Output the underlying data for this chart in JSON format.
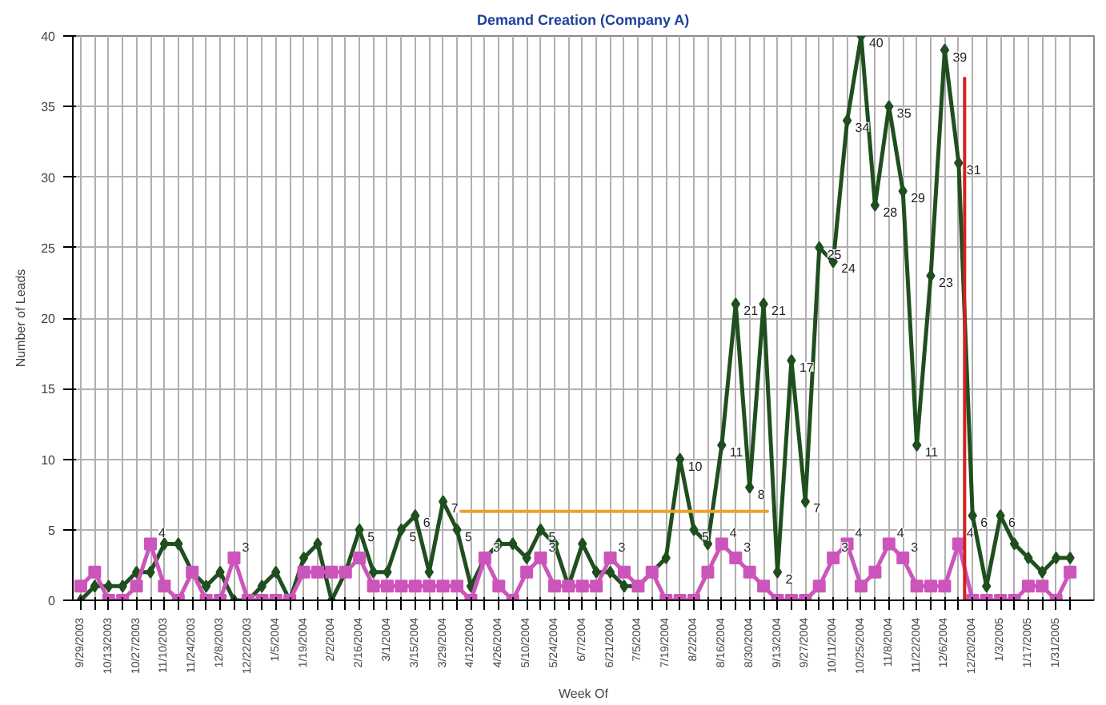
{
  "chart_data": {
    "type": "line",
    "title": "Demand Creation (Company A)",
    "xlabel": "Week Of",
    "ylabel": "Number of Leads",
    "x": [
      "2003-09-29",
      "2003-10-06",
      "2003-10-13",
      "2003-10-20",
      "2003-10-27",
      "2003-11-03",
      "2003-11-10",
      "2003-11-17",
      "2003-11-24",
      "2003-12-01",
      "2003-12-08",
      "2003-12-15",
      "2003-12-22",
      "2003-12-29",
      "2004-01-05",
      "2004-01-12",
      "2004-01-19",
      "2004-01-26",
      "2004-02-02",
      "2004-02-09",
      "2004-02-16",
      "2004-02-23",
      "2004-03-01",
      "2004-03-08",
      "2004-03-15",
      "2004-03-22",
      "2004-03-29",
      "2004-04-05",
      "2004-04-12",
      "2004-04-19",
      "2004-04-26",
      "2004-05-03",
      "2004-05-10",
      "2004-05-17",
      "2004-05-24",
      "2004-05-31",
      "2004-06-07",
      "2004-06-14",
      "2004-06-21",
      "2004-06-28",
      "2004-07-05",
      "2004-07-12",
      "2004-07-19",
      "2004-07-26",
      "2004-08-02",
      "2004-08-09",
      "2004-08-16",
      "2004-08-23",
      "2004-08-30",
      "2004-09-06",
      "2004-09-13",
      "2004-09-20",
      "2004-09-27",
      "2004-10-04",
      "2004-10-11",
      "2004-10-18",
      "2004-10-25",
      "2004-11-01",
      "2004-11-08",
      "2004-11-15",
      "2004-11-22",
      "2004-11-29",
      "2004-12-06",
      "2004-12-13",
      "2004-12-20",
      "2004-12-27",
      "2005-01-03",
      "2005-01-10",
      "2005-01-17",
      "2005-01-24",
      "2005-01-31",
      "2005-02-07"
    ],
    "series": [
      {
        "color": "#1f4f1f",
        "marker": "diamond",
        "value_labels": [
          null,
          null,
          null,
          null,
          null,
          null,
          null,
          null,
          null,
          null,
          null,
          null,
          null,
          null,
          null,
          null,
          null,
          null,
          null,
          null,
          "5",
          null,
          null,
          "5",
          "6",
          null,
          "7",
          "5",
          null,
          null,
          null,
          null,
          null,
          "5",
          null,
          null,
          null,
          null,
          null,
          null,
          null,
          null,
          null,
          "10",
          "5",
          null,
          "11",
          "21",
          "8",
          "21",
          "2",
          "17",
          "7",
          "25",
          "24",
          "34",
          "40",
          "28",
          "35",
          "29",
          "11",
          "23",
          "39",
          "31",
          "6",
          null,
          "6",
          null,
          null,
          null,
          null,
          null
        ],
        "values": [
          0,
          1,
          1,
          1,
          2,
          2,
          4,
          4,
          2,
          1,
          2,
          0,
          0,
          1,
          2,
          0,
          3,
          4,
          0,
          2,
          5,
          2,
          2,
          5,
          6,
          2,
          7,
          5,
          1,
          3,
          4,
          4,
          3,
          5,
          4,
          1,
          4,
          2,
          2,
          1,
          1,
          2,
          3,
          10,
          5,
          4,
          11,
          21,
          8,
          21,
          2,
          17,
          7,
          25,
          24,
          34,
          40,
          28,
          35,
          29,
          11,
          23,
          39,
          31,
          6,
          1,
          6,
          4,
          3,
          2,
          3,
          3
        ]
      },
      {
        "color": "#cc55bb",
        "marker": "square",
        "value_labels": [
          null,
          null,
          null,
          null,
          null,
          "4",
          null,
          null,
          null,
          null,
          null,
          "3",
          null,
          null,
          null,
          null,
          null,
          null,
          null,
          null,
          null,
          null,
          null,
          null,
          null,
          null,
          null,
          null,
          null,
          "3",
          null,
          null,
          null,
          "3",
          null,
          null,
          null,
          null,
          "3",
          null,
          null,
          null,
          null,
          null,
          null,
          null,
          "4",
          "3",
          null,
          null,
          null,
          null,
          null,
          null,
          "3",
          "4",
          null,
          null,
          "4",
          "3",
          null,
          null,
          null,
          "4",
          null,
          null,
          null,
          null,
          null,
          null,
          null,
          null
        ],
        "values": [
          1,
          2,
          0,
          0,
          1,
          4,
          1,
          0,
          2,
          0,
          0,
          3,
          0,
          0,
          0,
          0,
          2,
          2,
          2,
          2,
          3,
          1,
          1,
          1,
          1,
          1,
          1,
          1,
          0,
          3,
          1,
          0,
          2,
          3,
          1,
          1,
          1,
          1,
          3,
          2,
          1,
          2,
          0,
          0,
          0,
          2,
          4,
          3,
          2,
          1,
          0,
          0,
          0,
          1,
          3,
          4,
          1,
          2,
          4,
          3,
          1,
          1,
          1,
          4,
          0,
          0,
          0,
          0,
          1,
          1,
          0,
          2
        ]
      },
      {
        "color": "#f0a030",
        "marker": "none",
        "x": [
          "2004-04-07",
          "2004-09-08"
        ],
        "values": [
          6.3,
          6.3
        ]
      },
      {
        "color": "#d42020",
        "marker": "none",
        "x": [
          "2004-12-16",
          "2004-12-16"
        ],
        "values": [
          0,
          37
        ]
      }
    ],
    "xlim": [
      "2003-09-25",
      "2005-02-19"
    ],
    "xticks": [
      {
        "value": "2003-09-29",
        "label": "9/29/2003"
      },
      {
        "value": "2003-10-06",
        "label": null
      },
      {
        "value": "2003-10-13",
        "label": "10/13/2003"
      },
      {
        "value": "2003-10-20",
        "label": null
      },
      {
        "value": "2003-10-27",
        "label": "10/27/2003"
      },
      {
        "value": "2003-11-03",
        "label": null
      },
      {
        "value": "2003-11-10",
        "label": "11/10/2003"
      },
      {
        "value": "2003-11-17",
        "label": null
      },
      {
        "value": "2003-11-24",
        "label": "11/24/2003"
      },
      {
        "value": "2003-12-01",
        "label": null
      },
      {
        "value": "2003-12-08",
        "label": "12/8/2003"
      },
      {
        "value": "2003-12-15",
        "label": null
      },
      {
        "value": "2003-12-22",
        "label": "12/22/2003"
      },
      {
        "value": "2003-12-29",
        "label": null
      },
      {
        "value": "2004-01-05",
        "label": "1/5/2004"
      },
      {
        "value": "2004-01-12",
        "label": null
      },
      {
        "value": "2004-01-19",
        "label": "1/19/2004"
      },
      {
        "value": "2004-01-26",
        "label": null
      },
      {
        "value": "2004-02-02",
        "label": "2/2/2004"
      },
      {
        "value": "2004-02-09",
        "label": null
      },
      {
        "value": "2004-02-16",
        "label": "2/16/2004"
      },
      {
        "value": "2004-02-23",
        "label": null
      },
      {
        "value": "2004-03-01",
        "label": "3/1/2004"
      },
      {
        "value": "2004-03-08",
        "label": null
      },
      {
        "value": "2004-03-15",
        "label": "3/15/2004"
      },
      {
        "value": "2004-03-22",
        "label": null
      },
      {
        "value": "2004-03-29",
        "label": "3/29/2004"
      },
      {
        "value": "2004-04-05",
        "label": null
      },
      {
        "value": "2004-04-12",
        "label": "4/12/2004"
      },
      {
        "value": "2004-04-19",
        "label": null
      },
      {
        "value": "2004-04-26",
        "label": "4/26/2004"
      },
      {
        "value": "2004-05-03",
        "label": null
      },
      {
        "value": "2004-05-10",
        "label": "5/10/2004"
      },
      {
        "value": "2004-05-17",
        "label": null
      },
      {
        "value": "2004-05-24",
        "label": "5/24/2004"
      },
      {
        "value": "2004-05-31",
        "label": null
      },
      {
        "value": "2004-06-07",
        "label": "6/7/2004"
      },
      {
        "value": "2004-06-14",
        "label": null
      },
      {
        "value": "2004-06-21",
        "label": "6/21/2004"
      },
      {
        "value": "2004-06-28",
        "label": null
      },
      {
        "value": "2004-07-05",
        "label": "7/5/2004"
      },
      {
        "value": "2004-07-12",
        "label": null
      },
      {
        "value": "2004-07-19",
        "label": "7/19/2004"
      },
      {
        "value": "2004-07-26",
        "label": null
      },
      {
        "value": "2004-08-02",
        "label": "8/2/2004"
      },
      {
        "value": "2004-08-09",
        "label": null
      },
      {
        "value": "2004-08-16",
        "label": "8/16/2004"
      },
      {
        "value": "2004-08-23",
        "label": null
      },
      {
        "value": "2004-08-30",
        "label": "8/30/2004"
      },
      {
        "value": "2004-09-06",
        "label": null
      },
      {
        "value": "2004-09-13",
        "label": "9/13/2004"
      },
      {
        "value": "2004-09-20",
        "label": null
      },
      {
        "value": "2004-09-27",
        "label": "9/27/2004"
      },
      {
        "value": "2004-10-04",
        "label": null
      },
      {
        "value": "2004-10-11",
        "label": "10/11/2004"
      },
      {
        "value": "2004-10-18",
        "label": null
      },
      {
        "value": "2004-10-25",
        "label": "10/25/2004"
      },
      {
        "value": "2004-11-01",
        "label": null
      },
      {
        "value": "2004-11-08",
        "label": "11/8/2004"
      },
      {
        "value": "2004-11-15",
        "label": null
      },
      {
        "value": "2004-11-22",
        "label": "11/22/2004"
      },
      {
        "value": "2004-11-29",
        "label": null
      },
      {
        "value": "2004-12-06",
        "label": "12/6/2004"
      },
      {
        "value": "2004-12-13",
        "label": null
      },
      {
        "value": "2004-12-20",
        "label": "12/20/2004"
      },
      {
        "value": "2004-12-27",
        "label": null
      },
      {
        "value": "2005-01-03",
        "label": "1/3/2005"
      },
      {
        "value": "2005-01-10",
        "label": null
      },
      {
        "value": "2005-01-17",
        "label": "1/17/2005"
      },
      {
        "value": "2005-01-24",
        "label": null
      },
      {
        "value": "2005-01-31",
        "label": "1/31/2005"
      },
      {
        "value": "2005-02-07",
        "label": null
      }
    ],
    "ylim": [
      0,
      40
    ],
    "yticks": [
      0,
      5,
      10,
      15,
      20,
      25,
      30,
      35,
      40
    ],
    "grid": true,
    "line_style": "solid"
  }
}
